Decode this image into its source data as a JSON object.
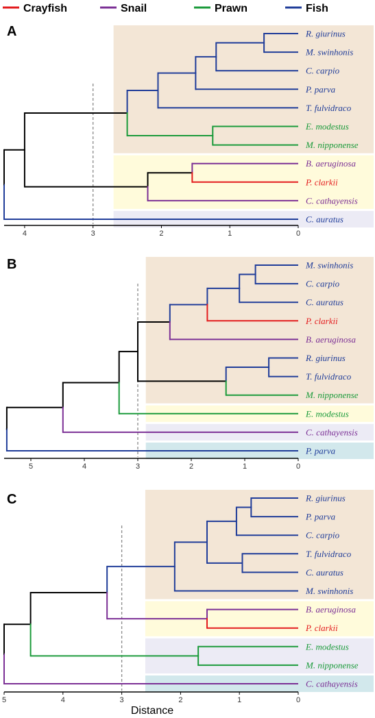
{
  "colors": {
    "crayfish": "#e31a1c",
    "snail": "#7b2f95",
    "prawn": "#1a9a3a",
    "fish": "#1f3c99",
    "root": "#000000",
    "box_tan": "#f3e6d6",
    "box_yellow": "#fffbdb",
    "box_lavender": "#ecebf5",
    "box_teal": "#d2e8ec"
  },
  "legend": [
    {
      "label": "Crayfish",
      "key": "crayfish"
    },
    {
      "label": "Snail",
      "key": "snail"
    },
    {
      "label": "Prawn",
      "key": "prawn"
    },
    {
      "label": "Fish",
      "key": "fish"
    }
  ],
  "x_axis_label": "Distance",
  "panels": [
    {
      "label": "A",
      "xmax": 4.3,
      "ticks": [
        4,
        3,
        2,
        1,
        0
      ],
      "cut": 3,
      "tips": [
        {
          "name": "R. giurinus",
          "group": "fish"
        },
        {
          "name": "M. swinhonis",
          "group": "fish"
        },
        {
          "name": "C. carpio",
          "group": "fish"
        },
        {
          "name": "P. parva",
          "group": "fish"
        },
        {
          "name": "T. fulvidraco",
          "group": "fish"
        },
        {
          "name": "E. modestus",
          "group": "prawn"
        },
        {
          "name": "M. nipponense",
          "group": "prawn"
        },
        {
          "name": "B. aeruginosa",
          "group": "snail"
        },
        {
          "name": "P. clarkii",
          "group": "crayfish"
        },
        {
          "name": "C. cathayensis",
          "group": "snail"
        },
        {
          "name": "C. auratus",
          "group": "fish"
        }
      ],
      "clusters": [
        {
          "from": 0,
          "to": 6,
          "start": 2.7,
          "fill": "box_tan"
        },
        {
          "from": 7,
          "to": 9,
          "start": 2.7,
          "fill": "box_yellow"
        },
        {
          "from": 10,
          "to": 10,
          "start": 2.7,
          "fill": "box_lavender"
        }
      ],
      "tree": {
        "h": 4.3,
        "color": "root",
        "children": [
          {
            "h": 4.0,
            "color": "root",
            "children": [
              {
                "h": 2.5,
                "color": "root",
                "children": [
                  {
                    "h": 2.05,
                    "color": "fish",
                    "children": [
                      {
                        "h": 1.5,
                        "color": "fish",
                        "children": [
                          {
                            "h": 1.2,
                            "color": "fish",
                            "children": [
                              {
                                "h": 0.5,
                                "color": "fish",
                                "children": [
                                  {
                                    "tip": 0
                                  },
                                  {
                                    "tip": 1
                                  }
                                ]
                              },
                              {
                                "tip": 2
                              }
                            ]
                          },
                          {
                            "tip": 3
                          }
                        ]
                      },
                      {
                        "tip": 4
                      }
                    ]
                  },
                  {
                    "h": 1.25,
                    "color": "prawn",
                    "children": [
                      {
                        "tip": 5
                      },
                      {
                        "tip": 6
                      }
                    ]
                  }
                ]
              },
              {
                "h": 2.2,
                "color": "root",
                "children": [
                  {
                    "h": 1.55,
                    "color": "root",
                    "children": [
                      {
                        "tip": 7
                      },
                      {
                        "tip": 8
                      }
                    ]
                  },
                  {
                    "tip": 9
                  }
                ]
              }
            ]
          },
          {
            "tip": 10
          }
        ]
      }
    },
    {
      "label": "B",
      "xmax": 5.5,
      "ticks": [
        5,
        4,
        3,
        2,
        1,
        0
      ],
      "cut": 3,
      "tips": [
        {
          "name": "M. swinhonis",
          "group": "fish"
        },
        {
          "name": "C. carpio",
          "group": "fish"
        },
        {
          "name": "C. auratus",
          "group": "fish"
        },
        {
          "name": "P. clarkii",
          "group": "crayfish"
        },
        {
          "name": "B. aeruginosa",
          "group": "snail"
        },
        {
          "name": "R. giurinus",
          "group": "fish"
        },
        {
          "name": "T. fulvidraco",
          "group": "fish"
        },
        {
          "name": "M. nipponense",
          "group": "prawn"
        },
        {
          "name": "E. modestus",
          "group": "prawn"
        },
        {
          "name": "C. cathayensis",
          "group": "snail"
        },
        {
          "name": "P. parva",
          "group": "fish"
        }
      ],
      "clusters": [
        {
          "from": 0,
          "to": 7,
          "start": 2.85,
          "fill": "box_tan"
        },
        {
          "from": 8,
          "to": 8,
          "start": 2.85,
          "fill": "box_yellow"
        },
        {
          "from": 9,
          "to": 9,
          "start": 2.85,
          "fill": "box_lavender"
        },
        {
          "from": 10,
          "to": 10,
          "start": 2.85,
          "fill": "box_teal"
        }
      ],
      "tree": {
        "h": 5.45,
        "color": "root",
        "children": [
          {
            "h": 4.4,
            "color": "root",
            "children": [
              {
                "h": 3.35,
                "color": "root",
                "children": [
                  {
                    "h": 3.0,
                    "color": "root",
                    "children": [
                      {
                        "h": 2.4,
                        "color": "root",
                        "children": [
                          {
                            "h": 1.7,
                            "color": "fish",
                            "children": [
                              {
                                "h": 1.1,
                                "color": "fish",
                                "children": [
                                  {
                                    "h": 0.8,
                                    "color": "fish",
                                    "children": [
                                      {
                                        "tip": 0
                                      },
                                      {
                                        "tip": 1
                                      }
                                    ]
                                  },
                                  {
                                    "tip": 2
                                  }
                                ]
                              },
                              {
                                "tip": 3
                              }
                            ]
                          },
                          {
                            "tip": 4
                          }
                        ]
                      },
                      {
                        "h": 1.35,
                        "color": "root",
                        "children": [
                          {
                            "h": 0.55,
                            "color": "fish",
                            "children": [
                              {
                                "tip": 5
                              },
                              {
                                "tip": 6
                              }
                            ]
                          },
                          {
                            "tip": 7
                          }
                        ]
                      }
                    ]
                  },
                  {
                    "tip": 8
                  }
                ]
              },
              {
                "tip": 9
              }
            ]
          },
          {
            "tip": 10
          }
        ]
      }
    },
    {
      "label": "C",
      "xmax": 5.0,
      "ticks": [
        5,
        4,
        3,
        2,
        1,
        0
      ],
      "cut": 3,
      "tips": [
        {
          "name": "R. giurinus",
          "group": "fish"
        },
        {
          "name": "P. parva",
          "group": "fish"
        },
        {
          "name": "C. carpio",
          "group": "fish"
        },
        {
          "name": "T. fulvidraco",
          "group": "fish"
        },
        {
          "name": "C. auratus",
          "group": "fish"
        },
        {
          "name": "M. swinhonis",
          "group": "fish"
        },
        {
          "name": "B. aeruginosa",
          "group": "snail"
        },
        {
          "name": "P. clarkii",
          "group": "crayfish"
        },
        {
          "name": "E. modestus",
          "group": "prawn"
        },
        {
          "name": "M. nipponense",
          "group": "prawn"
        },
        {
          "name": "C. cathayensis",
          "group": "snail"
        }
      ],
      "clusters": [
        {
          "from": 0,
          "to": 5,
          "start": 2.6,
          "fill": "box_tan"
        },
        {
          "from": 6,
          "to": 7,
          "start": 2.6,
          "fill": "box_yellow"
        },
        {
          "from": 8,
          "to": 9,
          "start": 2.6,
          "fill": "box_lavender"
        },
        {
          "from": 10,
          "to": 10,
          "start": 2.6,
          "fill": "box_teal"
        }
      ],
      "tree": {
        "h": 5.0,
        "color": "root",
        "children": [
          {
            "h": 4.55,
            "color": "root",
            "children": [
              {
                "h": 3.25,
                "color": "root",
                "children": [
                  {
                    "h": 2.1,
                    "color": "fish",
                    "children": [
                      {
                        "h": 1.55,
                        "color": "fish",
                        "children": [
                          {
                            "h": 1.05,
                            "color": "fish",
                            "children": [
                              {
                                "h": 0.8,
                                "color": "fish",
                                "children": [
                                  {
                                    "tip": 0
                                  },
                                  {
                                    "tip": 1
                                  }
                                ]
                              },
                              {
                                "tip": 2
                              }
                            ]
                          },
                          {
                            "h": 0.95,
                            "color": "fish",
                            "children": [
                              {
                                "tip": 3
                              },
                              {
                                "tip": 4
                              }
                            ]
                          }
                        ]
                      },
                      {
                        "tip": 5
                      }
                    ]
                  },
                  {
                    "h": 1.55,
                    "color": "snail",
                    "children": [
                      {
                        "tip": 6
                      },
                      {
                        "tip": 7
                      }
                    ]
                  }
                ]
              },
              {
                "h": 1.7,
                "color": "prawn",
                "children": [
                  {
                    "tip": 8
                  },
                  {
                    "tip": 9
                  }
                ]
              }
            ]
          },
          {
            "tip": 10
          }
        ]
      }
    }
  ]
}
